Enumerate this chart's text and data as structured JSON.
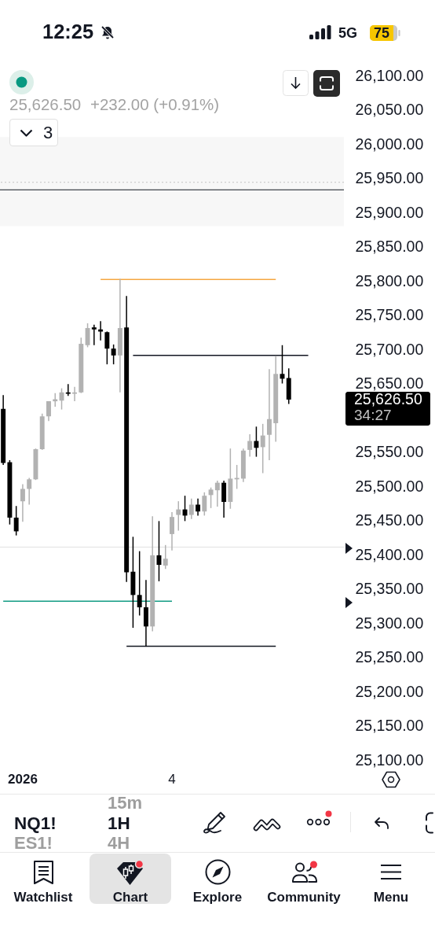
{
  "chart_data": {
    "type": "candlestick",
    "categories": [
      null,
      null,
      null,
      "2026",
      null,
      null,
      null,
      null,
      null,
      null,
      null,
      null,
      null,
      null,
      null,
      null,
      null,
      null,
      null,
      null,
      null,
      null,
      null,
      null,
      null,
      null,
      "4",
      null,
      null,
      null,
      null,
      null,
      null,
      null,
      null,
      null,
      null,
      null,
      null,
      null,
      null,
      null,
      null,
      null,
      null,
      null,
      null,
      null,
      null,
      null,
      null,
      null,
      null
    ],
    "ohlc": [
      [
        25613,
        25633,
        25531,
        25534
      ],
      [
        25535,
        25538,
        25444,
        25454
      ],
      [
        25454,
        25471,
        25428,
        25434
      ],
      [
        25478,
        25503,
        25448,
        25496
      ],
      [
        25496,
        25512,
        25473,
        25510
      ],
      [
        25510,
        25555,
        25509,
        25554
      ],
      [
        25554,
        25606,
        25553,
        25602
      ],
      [
        25602,
        25624,
        25595,
        25624
      ],
      [
        25624,
        25636,
        25616,
        25627
      ],
      [
        25625,
        25643,
        25612,
        25637
      ],
      [
        25637,
        25649,
        25632,
        25635
      ],
      [
        25635,
        25645,
        25624,
        25637
      ],
      [
        25637,
        25717,
        25636,
        25708
      ],
      [
        25706,
        25738,
        25703,
        25731
      ],
      [
        25732,
        25736,
        25706,
        25729
      ],
      [
        25729,
        25741,
        25713,
        25726
      ],
      [
        25725,
        25726,
        25678,
        25701
      ],
      [
        25701,
        25707,
        25678,
        25691
      ],
      [
        25691,
        25803,
        25637,
        25731
      ],
      [
        25732,
        25778,
        25360,
        25374
      ],
      [
        25375,
        25426,
        25293,
        25341
      ],
      [
        25341,
        25405,
        25311,
        25323
      ],
      [
        25323,
        25363,
        25266,
        25295
      ],
      [
        25295,
        25456,
        25288,
        25399
      ],
      [
        25399,
        25449,
        25361,
        25385
      ],
      [
        25384,
        25414,
        25379,
        25394
      ],
      [
        25430,
        25462,
        25406,
        25455
      ],
      [
        25458,
        25478,
        25435,
        25466
      ],
      [
        25466,
        25486,
        25449,
        25457
      ],
      [
        25458,
        25482,
        25452,
        25473
      ],
      [
        25473,
        25482,
        25457,
        25463
      ],
      [
        25463,
        25491,
        25457,
        25486
      ],
      [
        25487,
        25498,
        25468,
        25495
      ],
      [
        25494,
        25508,
        25470,
        25505
      ],
      [
        25505,
        25508,
        25454,
        25477
      ],
      [
        25477,
        25555,
        25467,
        25511
      ],
      [
        25510,
        25531,
        25496,
        25512
      ],
      [
        25511,
        25555,
        25506,
        25552
      ],
      [
        25553,
        25576,
        25543,
        25566
      ],
      [
        25566,
        25587,
        25543,
        25556
      ],
      [
        25557,
        25591,
        25519,
        25574
      ],
      [
        25575,
        25671,
        25538,
        25598
      ],
      [
        25592,
        25690,
        25565,
        25664
      ],
      [
        25664,
        25706,
        25650,
        25657
      ],
      [
        25658,
        25672,
        25620,
        25626.5
      ],
      null,
      null,
      null,
      null,
      null,
      null,
      null,
      null
    ],
    "colors": [
      "#000000",
      "#000000",
      "#000000",
      "#b2b2b2",
      "#b2b2b2",
      "#b2b2b2",
      "#b2b2b2",
      "#b2b2b2",
      "#b2b2b2",
      "#b2b2b2",
      "#000000",
      "#b2b2b2",
      "#b2b2b2",
      "#b2b2b2",
      "#000000",
      "#000000",
      "#000000",
      "#000000",
      "#b2b2b2",
      "#000000",
      "#000000",
      "#000000",
      "#000000",
      "#b2b2b2",
      "#000000",
      "#b2b2b2",
      "#b2b2b2",
      "#b2b2b2",
      "#000000",
      "#b2b2b2",
      "#000000",
      "#b2b2b2",
      "#b2b2b2",
      "#b2b2b2",
      "#000000",
      "#b2b2b2",
      "#b2b2b2",
      "#b2b2b2",
      "#b2b2b2",
      "#000000",
      "#b2b2b2",
      "#b2b2b2",
      "#b2b2b2",
      "#000000",
      "#000000",
      null,
      null,
      null,
      null,
      null,
      null,
      null,
      null
    ],
    "series": [
      {
        "type": "line",
        "color": "#f5a742",
        "values": [
          null,
          null,
          null,
          null,
          null,
          null,
          null,
          null,
          null,
          null,
          null,
          null,
          null,
          null,
          null,
          25802,
          25802,
          25802,
          25802,
          25802,
          25802,
          25802,
          25802,
          25802,
          25802,
          25802,
          25802,
          25802,
          25802,
          25802,
          25802,
          25802,
          25802,
          25802,
          25802,
          25802,
          25802,
          25802,
          25802,
          25802,
          25802,
          25802,
          25802,
          null,
          null,
          null,
          null,
          null,
          null,
          null,
          null,
          null,
          null
        ]
      },
      {
        "type": "line",
        "color": "#131722",
        "values": [
          null,
          null,
          null,
          null,
          null,
          null,
          null,
          null,
          null,
          null,
          null,
          null,
          null,
          null,
          null,
          null,
          null,
          null,
          null,
          null,
          25691,
          25691,
          25691,
          25691,
          25691,
          25691,
          25691,
          25691,
          25691,
          25691,
          25691,
          25691,
          25691,
          25691,
          25691,
          25691,
          25691,
          25691,
          25691,
          25691,
          25691,
          25691,
          25691,
          25691,
          25691,
          25691,
          25691,
          25691,
          null,
          null,
          null,
          null,
          null
        ]
      },
      {
        "type": "line",
        "color": "#129b84",
        "values": [
          25332,
          25332,
          25332,
          25332,
          25332,
          25332,
          25332,
          25332,
          25332,
          25332,
          25332,
          25332,
          25332,
          25332,
          25332,
          25332,
          25332,
          25332,
          25332,
          25332,
          25332,
          25332,
          25332,
          25332,
          25332,
          25332,
          25332,
          null,
          null,
          null,
          null,
          null,
          null,
          null,
          null,
          null,
          null,
          null,
          null,
          null,
          null,
          null,
          null,
          null,
          null,
          null,
          null,
          null,
          null,
          null,
          null,
          null,
          null
        ]
      },
      {
        "type": "line",
        "color": "#131722",
        "values": [
          null,
          null,
          null,
          null,
          null,
          null,
          null,
          null,
          null,
          null,
          null,
          null,
          null,
          null,
          null,
          null,
          null,
          null,
          null,
          25266,
          25266,
          25266,
          25266,
          25266,
          25266,
          25266,
          25266,
          25266,
          25266,
          25266,
          25266,
          25266,
          25266,
          25266,
          25266,
          25266,
          25266,
          25266,
          25266,
          25266,
          25266,
          25266,
          25266,
          null,
          null,
          null,
          null,
          null,
          null,
          null,
          null,
          null,
          null
        ]
      }
    ],
    "ylim": [
      25100,
      26100
    ],
    "yticks": [
      {
        "value": 25100,
        "label": "25,100.00"
      },
      {
        "value": 25150,
        "label": "25,150.00"
      },
      {
        "value": 25200,
        "label": "25,200.00"
      },
      {
        "value": 25250,
        "label": "25,250.00"
      },
      {
        "value": 25300,
        "label": "25,300.00"
      },
      {
        "value": 25350,
        "label": "25,350.00"
      },
      {
        "value": 25400,
        "label": "25,400.00"
      },
      {
        "value": 25450,
        "label": "25,450.00"
      },
      {
        "value": 25500,
        "label": "25,500.00"
      },
      {
        "value": 25550,
        "label": "25,550.00"
      },
      {
        "value": 25650,
        "label": "25,650.00"
      },
      {
        "value": 25700,
        "label": "25,700.00"
      },
      {
        "value": 25750,
        "label": "25,750.00"
      },
      {
        "value": 25800,
        "label": "25,800.00"
      },
      {
        "value": 25850,
        "label": "25,850.00"
      },
      {
        "value": 25900,
        "label": "25,900.00"
      },
      {
        "value": 25950,
        "label": "25,950.00"
      },
      {
        "value": 26000,
        "label": "26,000.00"
      },
      {
        "value": 26050,
        "label": "26,050.00"
      },
      {
        "value": 26100,
        "label": "26,100.00"
      }
    ],
    "bands": [
      {
        "axis": "y",
        "from": 25880,
        "to": 26010,
        "color": "#f7f7f7"
      }
    ],
    "ref_lines": [
      {
        "axis": "y",
        "value": 25944,
        "color": "#c4c4c4",
        "line_style": "dotted"
      },
      {
        "axis": "y",
        "value": 25933,
        "color": "#131722"
      },
      {
        "axis": "y",
        "value": 25411,
        "color": "#e0e0e0"
      }
    ],
    "annotations": [
      "12:25",
      "5G",
      "75",
      "25,626.50",
      "+232.00 (+0.91%)",
      "3",
      "15m",
      "NQ1!",
      "1H",
      "ES1!",
      "4H",
      "Watchlist",
      "Chart",
      "Explore",
      "Community",
      "Menu",
      "25,626.50",
      "34:27"
    ]
  }
}
